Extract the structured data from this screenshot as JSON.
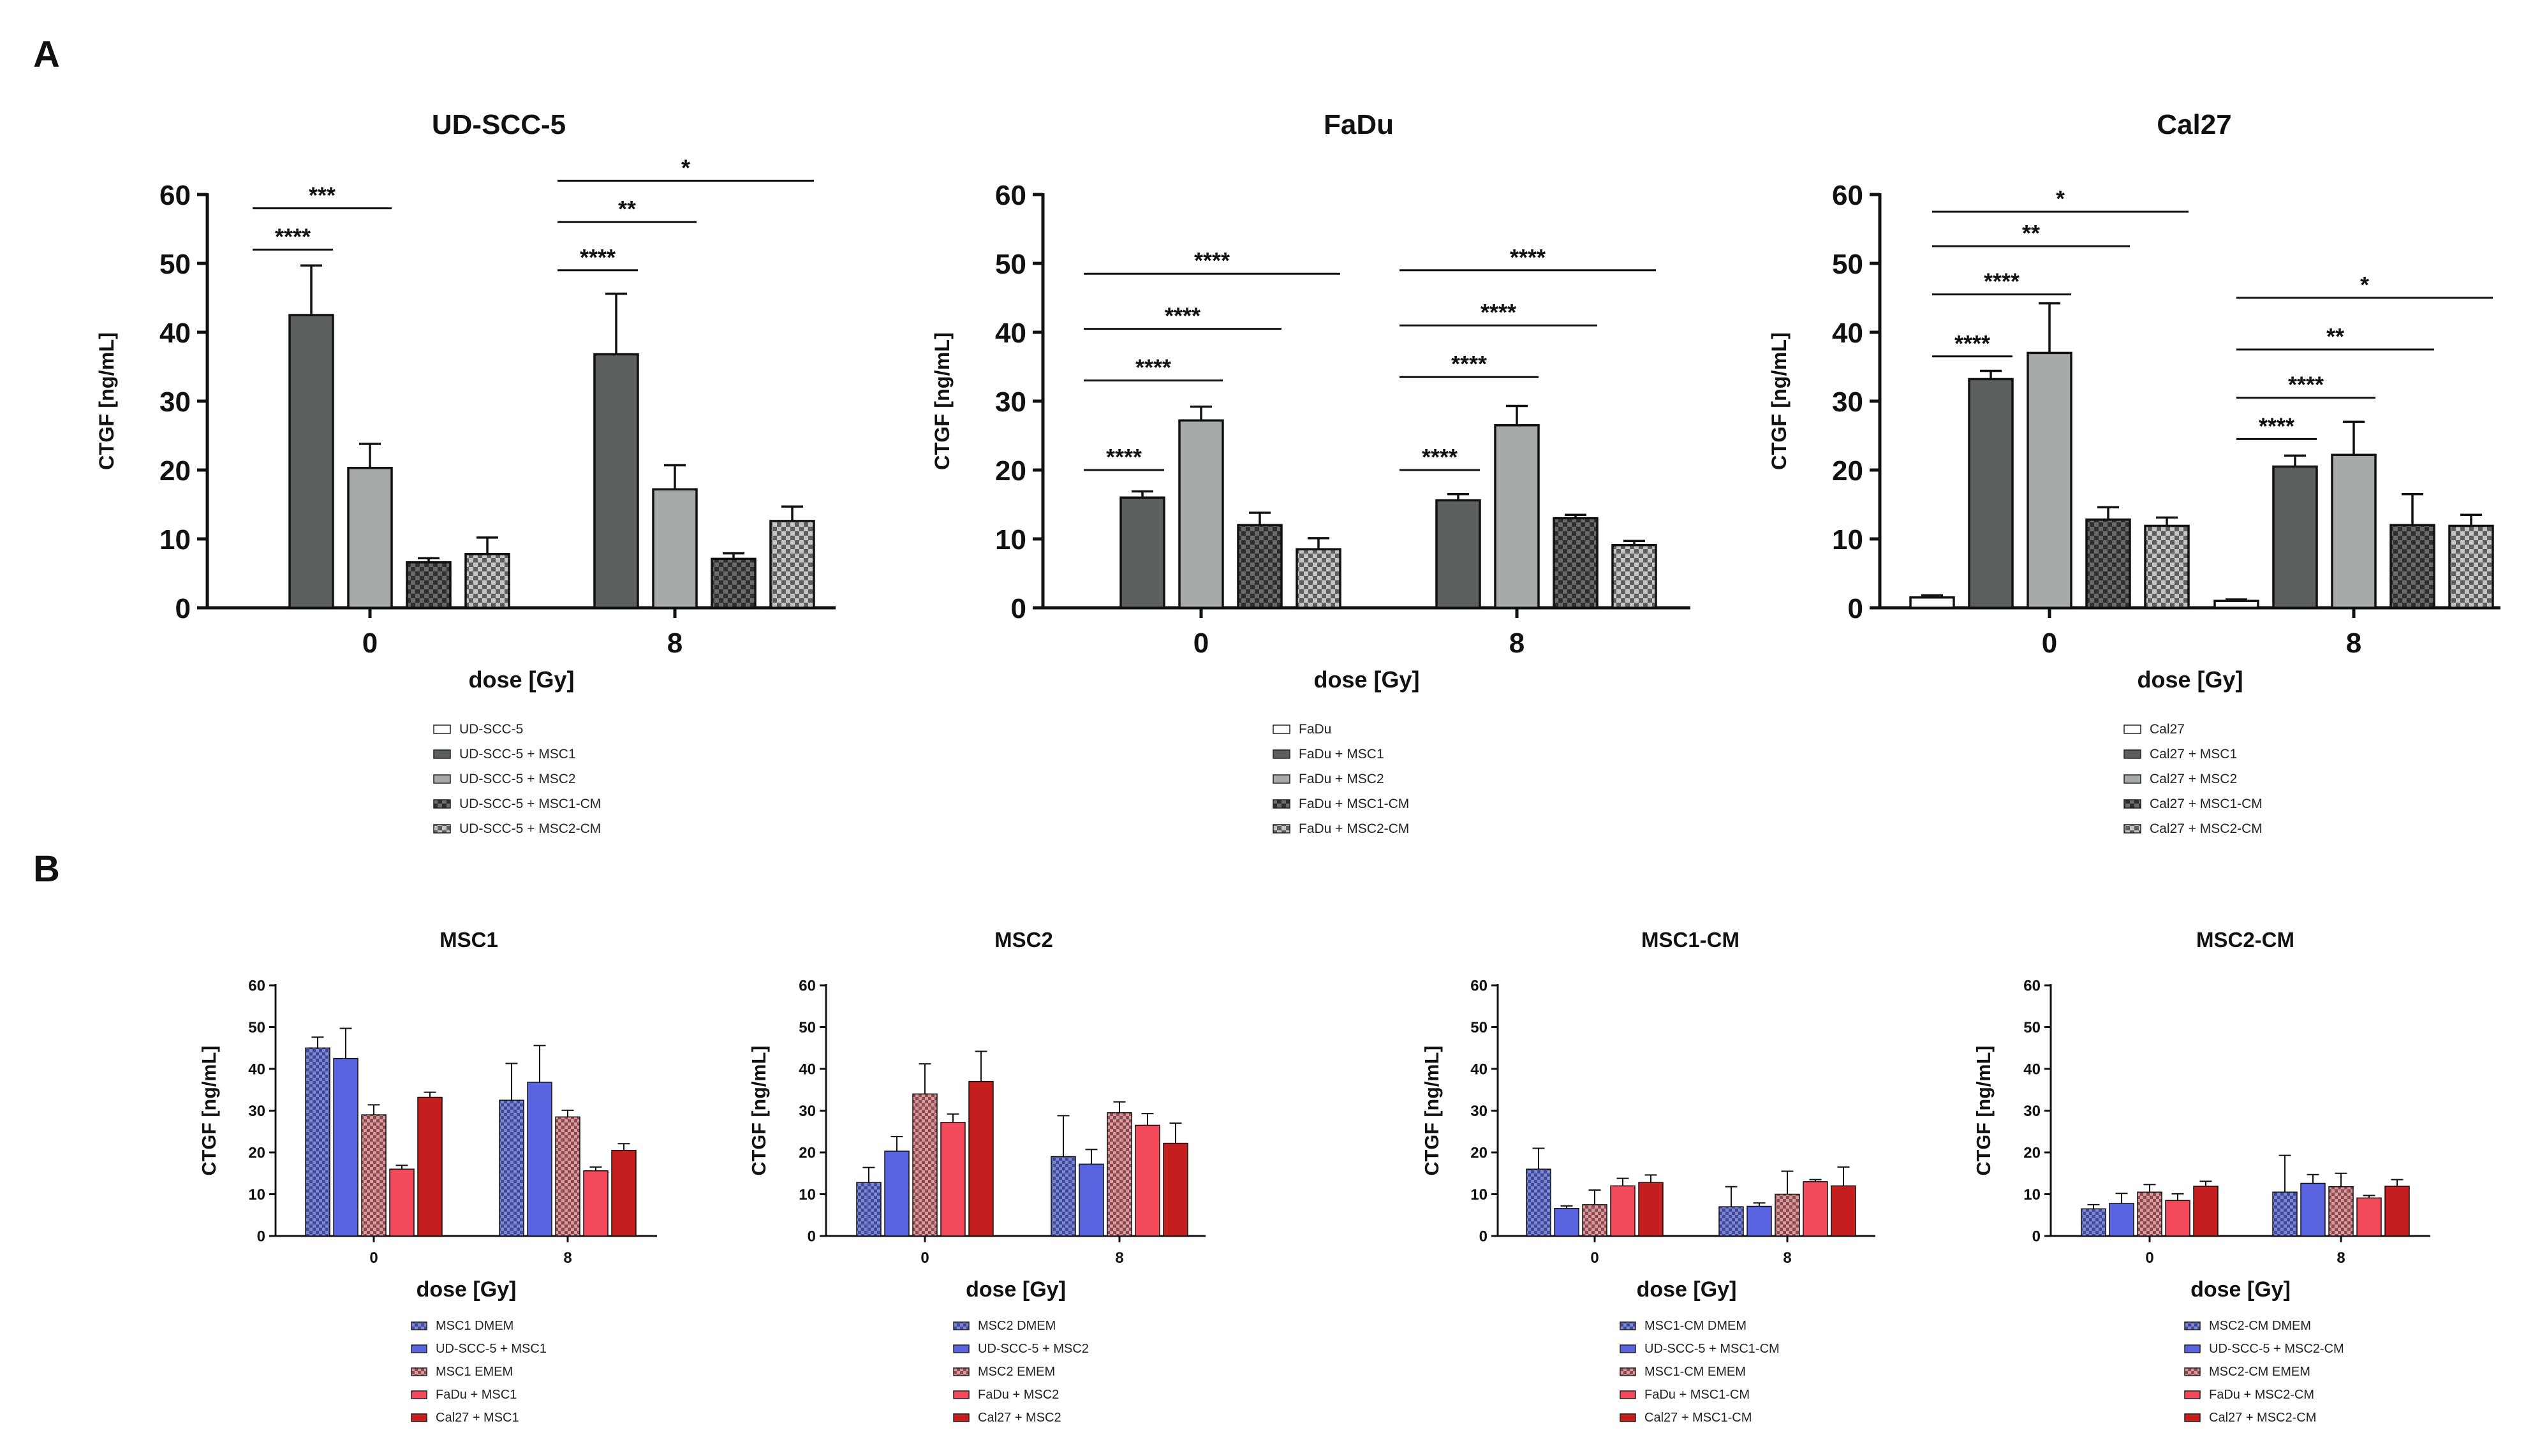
{
  "panel_labels": {
    "A": "A",
    "B": "B"
  },
  "colors": {
    "empty": "#ffffff",
    "dark": "#5b5f5e",
    "light": "#a7aaab",
    "msc_cm_a": "#3d3d3d",
    "msc_cm_b": "#8a8a8a",
    "b_msc_dmem": "#4e5aa8",
    "b_udscc5": "#5a63e0",
    "b_msc_emem": "#a8666a",
    "b_fadu": "#f24a5a",
    "b_cal27": "#c41e1e"
  },
  "chart_data": [
    {
      "id": "A1",
      "type": "bar",
      "title": "UD-SCC-5",
      "xlabel": "dose [Gy]",
      "ylabel": "CTGF [ng/mL]",
      "ylim": [
        0,
        60
      ],
      "yticks": [
        "0",
        "10",
        "20",
        "30",
        "40",
        "50",
        "60"
      ],
      "categories": [
        "0",
        "8"
      ],
      "series": [
        {
          "name": "UD-SCC-5",
          "style": "empty",
          "values": [
            0,
            0
          ],
          "errors": [
            0,
            0
          ]
        },
        {
          "name": "UD-SCC-5 + MSC1",
          "style": "dark",
          "values": [
            42.5,
            36.8
          ],
          "errors": [
            7.2,
            8.8
          ]
        },
        {
          "name": "UD-SCC-5 + MSC2",
          "style": "light",
          "values": [
            20.3,
            17.2
          ],
          "errors": [
            3.5,
            3.5
          ]
        },
        {
          "name": "UD-SCC-5 + MSC1-CM",
          "style": "checkDark",
          "values": [
            6.6,
            7.1
          ],
          "errors": [
            0.6,
            0.8
          ]
        },
        {
          "name": "UD-SCC-5 + MSC2-CM",
          "style": "checkLight",
          "values": [
            7.8,
            12.6
          ],
          "errors": [
            2.4,
            2.1
          ]
        }
      ],
      "significance": [
        {
          "group": 0,
          "from": 0,
          "to": 2,
          "label": "***",
          "level": 58
        },
        {
          "group": 0,
          "from": 0,
          "to": 1,
          "label": "****",
          "level": 52
        },
        {
          "group": 1,
          "from": 0,
          "to": 4,
          "label": "*",
          "level": 62
        },
        {
          "group": 1,
          "from": 0,
          "to": 2,
          "label": "**",
          "level": 56
        },
        {
          "group": 1,
          "from": 0,
          "to": 1,
          "label": "****",
          "level": 49
        }
      ]
    },
    {
      "id": "A2",
      "type": "bar",
      "title": "FaDu",
      "xlabel": "dose [Gy]",
      "ylabel": "CTGF [ng/mL]",
      "ylim": [
        0,
        60
      ],
      "yticks": [
        "0",
        "10",
        "20",
        "30",
        "40",
        "50",
        "60"
      ],
      "categories": [
        "0",
        "8"
      ],
      "series": [
        {
          "name": "FaDu",
          "style": "empty",
          "values": [
            0,
            0
          ],
          "errors": [
            0,
            0
          ]
        },
        {
          "name": "FaDu + MSC1",
          "style": "dark",
          "values": [
            16.0,
            15.6
          ],
          "errors": [
            0.9,
            0.9
          ]
        },
        {
          "name": "FaDu + MSC2",
          "style": "light",
          "values": [
            27.2,
            26.5
          ],
          "errors": [
            2.0,
            2.8
          ]
        },
        {
          "name": "FaDu + MSC1-CM",
          "style": "checkDark",
          "values": [
            12.0,
            13.0
          ],
          "errors": [
            1.8,
            0.5
          ]
        },
        {
          "name": "FaDu + MSC2-CM",
          "style": "checkLight",
          "values": [
            8.5,
            9.1
          ],
          "errors": [
            1.6,
            0.6
          ]
        }
      ],
      "significance": [
        {
          "group": 0,
          "from": 0,
          "to": 4,
          "label": "****",
          "level": 48.5
        },
        {
          "group": 0,
          "from": 0,
          "to": 3,
          "label": "****",
          "level": 40.5
        },
        {
          "group": 0,
          "from": 0,
          "to": 2,
          "label": "****",
          "level": 33
        },
        {
          "group": 0,
          "from": 0,
          "to": 1,
          "label": "****",
          "level": 20
        },
        {
          "group": 1,
          "from": 0,
          "to": 4,
          "label": "****",
          "level": 49
        },
        {
          "group": 1,
          "from": 0,
          "to": 3,
          "label": "****",
          "level": 41
        },
        {
          "group": 1,
          "from": 0,
          "to": 2,
          "label": "****",
          "level": 33.5
        },
        {
          "group": 1,
          "from": 0,
          "to": 1,
          "label": "****",
          "level": 20
        }
      ]
    },
    {
      "id": "A3",
      "type": "bar",
      "title": "Cal27",
      "xlabel": "dose [Gy]",
      "ylabel": "CTGF [ng/mL]",
      "ylim": [
        0,
        60
      ],
      "yticks": [
        "0",
        "10",
        "20",
        "30",
        "40",
        "50",
        "60"
      ],
      "categories": [
        "0",
        "8"
      ],
      "series": [
        {
          "name": "Cal27",
          "style": "empty",
          "values": [
            1.5,
            1.0
          ],
          "errors": [
            0.3,
            0.2
          ]
        },
        {
          "name": "Cal27 + MSC1",
          "style": "dark",
          "values": [
            33.2,
            20.5
          ],
          "errors": [
            1.2,
            1.6
          ]
        },
        {
          "name": "Cal27 + MSC2",
          "style": "light",
          "values": [
            37.0,
            22.2
          ],
          "errors": [
            7.2,
            4.8
          ]
        },
        {
          "name": "Cal27 + MSC1-CM",
          "style": "checkDark",
          "values": [
            12.8,
            12.0
          ],
          "errors": [
            1.8,
            4.5
          ]
        },
        {
          "name": "Cal27 + MSC2-CM",
          "style": "checkLight",
          "values": [
            11.9,
            11.9
          ],
          "errors": [
            1.2,
            1.6
          ]
        }
      ],
      "significance": [
        {
          "group": 0,
          "from": 0,
          "to": 4,
          "label": "*",
          "level": 57.5
        },
        {
          "group": 0,
          "from": 0,
          "to": 3,
          "label": "**",
          "level": 52.5
        },
        {
          "group": 0,
          "from": 0,
          "to": 2,
          "label": "****",
          "level": 45.5
        },
        {
          "group": 0,
          "from": 0,
          "to": 1,
          "label": "****",
          "level": 36.5
        },
        {
          "group": 1,
          "from": 0,
          "to": 4,
          "label": "*",
          "level": 45
        },
        {
          "group": 1,
          "from": 0,
          "to": 3,
          "label": "**",
          "level": 37.5
        },
        {
          "group": 1,
          "from": 0,
          "to": 2,
          "label": "****",
          "level": 30.5
        },
        {
          "group": 1,
          "from": 0,
          "to": 1,
          "label": "****",
          "level": 24.5
        }
      ]
    },
    {
      "id": "B1",
      "type": "bar",
      "title": "MSC1",
      "xlabel": "dose [Gy]",
      "ylabel": "CTGF [ng/mL]",
      "ylim": [
        0,
        60
      ],
      "yticks": [
        "0",
        "10",
        "20",
        "30",
        "40",
        "50",
        "60"
      ],
      "categories": [
        "0",
        "8"
      ],
      "series": [
        {
          "name": "MSC1 DMEM",
          "style": "b_msc_dmem",
          "values": [
            45.0,
            32.5
          ],
          "errors": [
            2.6,
            8.8
          ]
        },
        {
          "name": "UD-SCC-5 + MSC1",
          "style": "b_udscc5",
          "values": [
            42.5,
            36.8
          ],
          "errors": [
            7.2,
            8.8
          ]
        },
        {
          "name": "MSC1 EMEM",
          "style": "b_msc_emem",
          "values": [
            29.0,
            28.5
          ],
          "errors": [
            2.4,
            1.6
          ]
        },
        {
          "name": "FaDu + MSC1",
          "style": "b_fadu",
          "values": [
            16.0,
            15.6
          ],
          "errors": [
            0.9,
            0.9
          ]
        },
        {
          "name": "Cal27 + MSC1",
          "style": "b_cal27",
          "values": [
            33.2,
            20.5
          ],
          "errors": [
            1.2,
            1.6
          ]
        }
      ]
    },
    {
      "id": "B2",
      "type": "bar",
      "title": "MSC2",
      "xlabel": "dose [Gy]",
      "ylabel": "CTGF [ng/mL]",
      "ylim": [
        0,
        60
      ],
      "yticks": [
        "0",
        "10",
        "20",
        "30",
        "40",
        "50",
        "60"
      ],
      "categories": [
        "0",
        "8"
      ],
      "series": [
        {
          "name": "MSC2 DMEM",
          "style": "b_msc_dmem",
          "values": [
            12.8,
            19.0
          ],
          "errors": [
            3.6,
            9.8
          ]
        },
        {
          "name": "UD-SCC-5 + MSC2",
          "style": "b_udscc5",
          "values": [
            20.3,
            17.2
          ],
          "errors": [
            3.5,
            3.5
          ]
        },
        {
          "name": "MSC2 EMEM",
          "style": "b_msc_emem",
          "values": [
            34.0,
            29.5
          ],
          "errors": [
            7.2,
            2.6
          ]
        },
        {
          "name": "FaDu + MSC2",
          "style": "b_fadu",
          "values": [
            27.2,
            26.5
          ],
          "errors": [
            2.0,
            2.8
          ]
        },
        {
          "name": "Cal27 + MSC2",
          "style": "b_cal27",
          "values": [
            37.0,
            22.2
          ],
          "errors": [
            7.2,
            4.8
          ]
        }
      ]
    },
    {
      "id": "B3",
      "type": "bar",
      "title": "MSC1-CM",
      "xlabel": "dose [Gy]",
      "ylabel": "CTGF [ng/mL]",
      "ylim": [
        0,
        60
      ],
      "yticks": [
        "0",
        "10",
        "20",
        "30",
        "40",
        "50",
        "60"
      ],
      "categories": [
        "0",
        "8"
      ],
      "series": [
        {
          "name": "MSC1-CM DMEM",
          "style": "b_msc_dmem",
          "values": [
            16.0,
            7.0
          ],
          "errors": [
            5.0,
            4.8
          ]
        },
        {
          "name": "UD-SCC-5 + MSC1-CM",
          "style": "b_udscc5",
          "values": [
            6.6,
            7.1
          ],
          "errors": [
            0.6,
            0.8
          ]
        },
        {
          "name": "MSC1-CM EMEM",
          "style": "b_msc_emem",
          "values": [
            7.5,
            10.0
          ],
          "errors": [
            3.5,
            5.5
          ]
        },
        {
          "name": "FaDu + MSC1-CM",
          "style": "b_fadu",
          "values": [
            12.0,
            13.0
          ],
          "errors": [
            1.8,
            0.5
          ]
        },
        {
          "name": "Cal27 + MSC1-CM",
          "style": "b_cal27",
          "values": [
            12.8,
            12.0
          ],
          "errors": [
            1.8,
            4.5
          ]
        }
      ]
    },
    {
      "id": "B4",
      "type": "bar",
      "title": "MSC2-CM",
      "xlabel": "dose [Gy]",
      "ylabel": "CTGF [ng/mL]",
      "ylim": [
        0,
        60
      ],
      "yticks": [
        "0",
        "10",
        "20",
        "30",
        "40",
        "50",
        "60"
      ],
      "categories": [
        "0",
        "8"
      ],
      "series": [
        {
          "name": "MSC2-CM DMEM",
          "style": "b_msc_dmem",
          "values": [
            6.5,
            10.5
          ],
          "errors": [
            1.0,
            8.8
          ]
        },
        {
          "name": "UD-SCC-5 + MSC2-CM",
          "style": "b_udscc5",
          "values": [
            7.8,
            12.6
          ],
          "errors": [
            2.4,
            2.1
          ]
        },
        {
          "name": "MSC2-CM EMEM",
          "style": "b_msc_emem",
          "values": [
            10.5,
            11.8
          ],
          "errors": [
            1.8,
            3.2
          ]
        },
        {
          "name": "FaDu + MSC2-CM",
          "style": "b_fadu",
          "values": [
            8.5,
            9.1
          ],
          "errors": [
            1.6,
            0.6
          ]
        },
        {
          "name": "Cal27 + MSC2-CM",
          "style": "b_cal27",
          "values": [
            11.9,
            11.9
          ],
          "errors": [
            1.2,
            1.6
          ]
        }
      ]
    }
  ]
}
